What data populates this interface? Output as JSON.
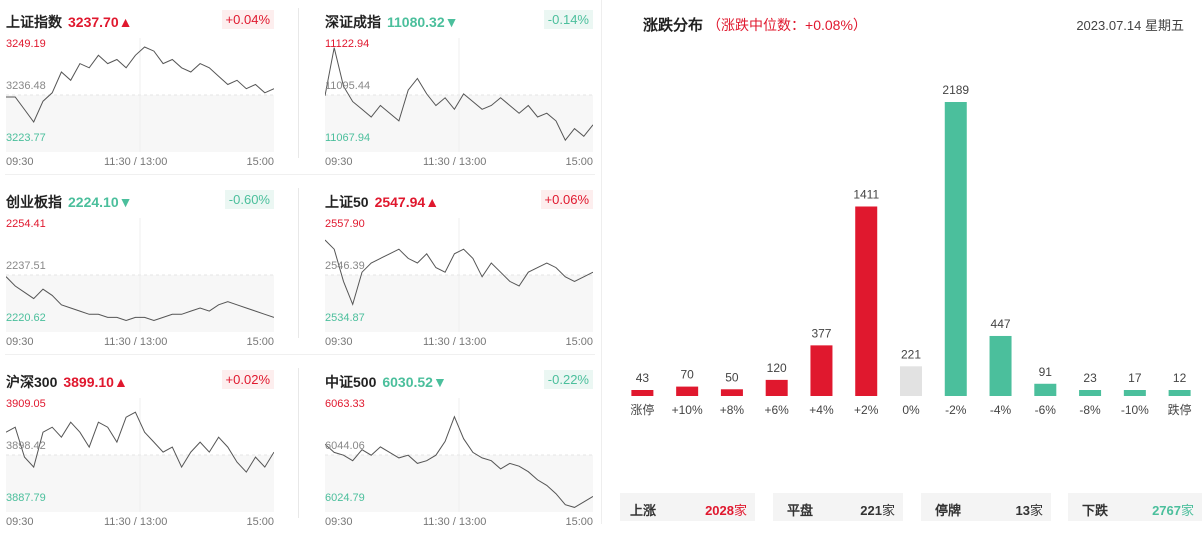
{
  "indices": [
    {
      "name": "上证指数",
      "price": "3237.70",
      "arrow": "▲",
      "trend": "up",
      "pct": "+0.04%",
      "high": "3249.19",
      "mid": "3236.48",
      "low": "3223.77",
      "t_start": "09:30",
      "t_mid": "11:30 / 13:00",
      "t_end": "15:00",
      "series": [
        3236,
        3236,
        3233,
        3230,
        3235,
        3237,
        3242,
        3240,
        3244,
        3243,
        3246,
        3244,
        3245,
        3243,
        3246,
        3248,
        3247,
        3244,
        3245,
        3243,
        3242,
        3244,
        3243,
        3241,
        3239,
        3240,
        3238,
        3239,
        3237,
        3238
      ]
    },
    {
      "name": "深证成指",
      "price": "11080.32",
      "arrow": "▼",
      "trend": "down",
      "pct": "-0.14%",
      "high": "11122.94",
      "mid": "11095.44",
      "low": "11067.94",
      "t_start": "09:30",
      "t_mid": "11:30 / 13:00",
      "t_end": "15:00",
      "series": [
        11095,
        11120,
        11100,
        11092,
        11088,
        11084,
        11090,
        11086,
        11082,
        11098,
        11104,
        11096,
        11090,
        11094,
        11088,
        11096,
        11092,
        11088,
        11090,
        11094,
        11090,
        11086,
        11090,
        11084,
        11086,
        11082,
        11072,
        11078,
        11074,
        11080
      ]
    },
    {
      "name": "创业板指",
      "price": "2224.10",
      "arrow": "▼",
      "trend": "down",
      "pct": "-0.60%",
      "high": "2254.41",
      "mid": "2237.51",
      "low": "2220.62",
      "t_start": "09:30",
      "t_mid": "11:30 / 13:00",
      "t_end": "15:00",
      "series": [
        2237,
        2234,
        2232,
        2230,
        2233,
        2231,
        2228,
        2227,
        2226,
        2225,
        2225,
        2224,
        2224,
        2223,
        2224,
        2224,
        2223,
        2224,
        2225,
        2225,
        2226,
        2227,
        2226,
        2228,
        2229,
        2228,
        2227,
        2226,
        2225,
        2224
      ]
    },
    {
      "name": "上证50",
      "price": "2547.94",
      "arrow": "▲",
      "trend": "up",
      "pct": "+0.06%",
      "high": "2557.90",
      "mid": "2546.39",
      "low": "2534.87",
      "t_start": "09:30",
      "t_mid": "11:30 / 13:00",
      "t_end": "15:00",
      "series": [
        2554,
        2552,
        2545,
        2540,
        2547,
        2549,
        2550,
        2551,
        2552,
        2550,
        2549,
        2551,
        2548,
        2547,
        2551,
        2552,
        2550,
        2546,
        2549,
        2547,
        2545,
        2544,
        2547,
        2548,
        2549,
        2548,
        2546,
        2545,
        2546,
        2547
      ]
    },
    {
      "name": "沪深300",
      "price": "3899.10",
      "arrow": "▲",
      "trend": "up",
      "pct": "+0.02%",
      "high": "3909.05",
      "mid": "3898.42",
      "low": "3887.79",
      "t_start": "09:30",
      "t_mid": "11:30 / 13:00",
      "t_end": "15:00",
      "series": [
        3903,
        3904,
        3898,
        3896,
        3903,
        3904,
        3902,
        3905,
        3903,
        3900,
        3905,
        3904,
        3901,
        3906,
        3907,
        3903,
        3901,
        3899,
        3900,
        3896,
        3899,
        3901,
        3899,
        3902,
        3900,
        3897,
        3895,
        3898,
        3896,
        3899
      ]
    },
    {
      "name": "中证500",
      "price": "6030.52",
      "arrow": "▼",
      "trend": "down",
      "pct": "-0.22%",
      "high": "6063.33",
      "mid": "6044.06",
      "low": "6024.79",
      "t_start": "09:30",
      "t_mid": "11:30 / 13:00",
      "t_end": "15:00",
      "series": [
        6048,
        6045,
        6044,
        6042,
        6046,
        6044,
        6047,
        6045,
        6043,
        6044,
        6041,
        6042,
        6044,
        6049,
        6058,
        6050,
        6045,
        6043,
        6042,
        6039,
        6041,
        6040,
        6038,
        6035,
        6033,
        6030,
        6026,
        6025,
        6027,
        6029
      ]
    }
  ],
  "distribution": {
    "title": "涨跌分布",
    "subtitle": "（涨跌中位数：+0.08%）",
    "date": "2023.07.14 星期五",
    "colors": {
      "up": "#e0182e",
      "flat": "#e2e2e2",
      "down": "#4bbf9c"
    }
  },
  "chart_data": {
    "type": "bar",
    "categories": [
      "涨停",
      "+10%",
      "+8%",
      "+6%",
      "+4%",
      "+2%",
      "0%",
      "-2%",
      "-4%",
      "-6%",
      "-8%",
      "-10%",
      "跌停"
    ],
    "values": [
      43,
      70,
      50,
      120,
      377,
      1411,
      221,
      2189,
      447,
      91,
      23,
      17,
      12
    ],
    "trend": [
      "up",
      "up",
      "up",
      "up",
      "up",
      "up",
      "flat",
      "down",
      "down",
      "down",
      "down",
      "down",
      "down"
    ]
  },
  "stats": [
    {
      "label": "上涨",
      "value": "2028",
      "unit": "家",
      "trend": "up"
    },
    {
      "label": "平盘",
      "value": "221",
      "unit": "家",
      "trend": "flat"
    },
    {
      "label": "停牌",
      "value": "13",
      "unit": "家",
      "trend": "flat"
    },
    {
      "label": "下跌",
      "value": "2767",
      "unit": "家",
      "trend": "down"
    }
  ]
}
